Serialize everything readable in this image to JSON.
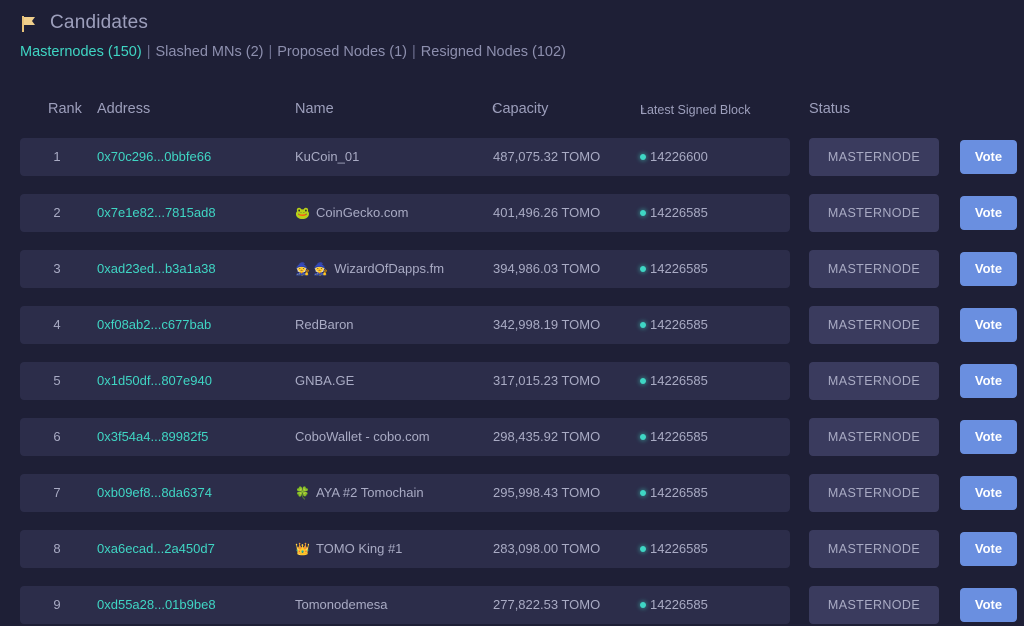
{
  "header": {
    "title": "Candidates",
    "icon": "flag-icon"
  },
  "filters": [
    {
      "label": "Masternodes (150)",
      "active": true
    },
    {
      "label": "Slashed MNs (2)",
      "active": false
    },
    {
      "label": "Proposed Nodes (1)",
      "active": false
    },
    {
      "label": "Resigned Nodes (102)",
      "active": false
    }
  ],
  "columns": {
    "rank": "Rank",
    "address": "Address",
    "name": "Name",
    "capacity": "Capacity",
    "latest_block": "Latest Signed Block",
    "status": "Status"
  },
  "colors": {
    "accent": "#3fd6c4",
    "vote": "#6a8fe0",
    "row": "#2c2d4a",
    "background": "#1e1f36"
  },
  "rows": [
    {
      "rank": "1",
      "address": "0x70c296...0bbfe66",
      "emoji": "",
      "name": "KuCoin_01",
      "capacity": "487,075.32 TOMO",
      "block": "14226600",
      "status": "MASTERNODE",
      "action": "Vote"
    },
    {
      "rank": "2",
      "address": "0x7e1e82...7815ad8",
      "emoji": "🐸",
      "name": "CoinGecko.com",
      "capacity": "401,496.26 TOMO",
      "block": "14226585",
      "status": "MASTERNODE",
      "action": "Vote"
    },
    {
      "rank": "3",
      "address": "0xad23ed...b3a1a38",
      "emoji": "🧙 🧙",
      "name": "WizardOfDapps.fm",
      "capacity": "394,986.03 TOMO",
      "block": "14226585",
      "status": "MASTERNODE",
      "action": "Vote"
    },
    {
      "rank": "4",
      "address": "0xf08ab2...c677bab",
      "emoji": "",
      "name": "RedBaron",
      "capacity": "342,998.19 TOMO",
      "block": "14226585",
      "status": "MASTERNODE",
      "action": "Vote"
    },
    {
      "rank": "5",
      "address": "0x1d50df...807e940",
      "emoji": "",
      "name": "GNBA.GE",
      "capacity": "317,015.23 TOMO",
      "block": "14226585",
      "status": "MASTERNODE",
      "action": "Vote"
    },
    {
      "rank": "6",
      "address": "0x3f54a4...89982f5",
      "emoji": "",
      "name": "CoboWallet - cobo.com",
      "capacity": "298,435.92 TOMO",
      "block": "14226585",
      "status": "MASTERNODE",
      "action": "Vote"
    },
    {
      "rank": "7",
      "address": "0xb09ef8...8da6374",
      "emoji": "🍀",
      "name": "AYA #2 Tomochain",
      "capacity": "295,998.43 TOMO",
      "block": "14226585",
      "status": "MASTERNODE",
      "action": "Vote"
    },
    {
      "rank": "8",
      "address": "0xa6ecad...2a450d7",
      "emoji": "👑",
      "name": "TOMO King #1",
      "capacity": "283,098.00 TOMO",
      "block": "14226585",
      "status": "MASTERNODE",
      "action": "Vote"
    },
    {
      "rank": "9",
      "address": "0xd55a28...01b9be8",
      "emoji": "",
      "name": "Tomonodemesa",
      "capacity": "277,822.53 TOMO",
      "block": "14226585",
      "status": "MASTERNODE",
      "action": "Vote"
    }
  ]
}
